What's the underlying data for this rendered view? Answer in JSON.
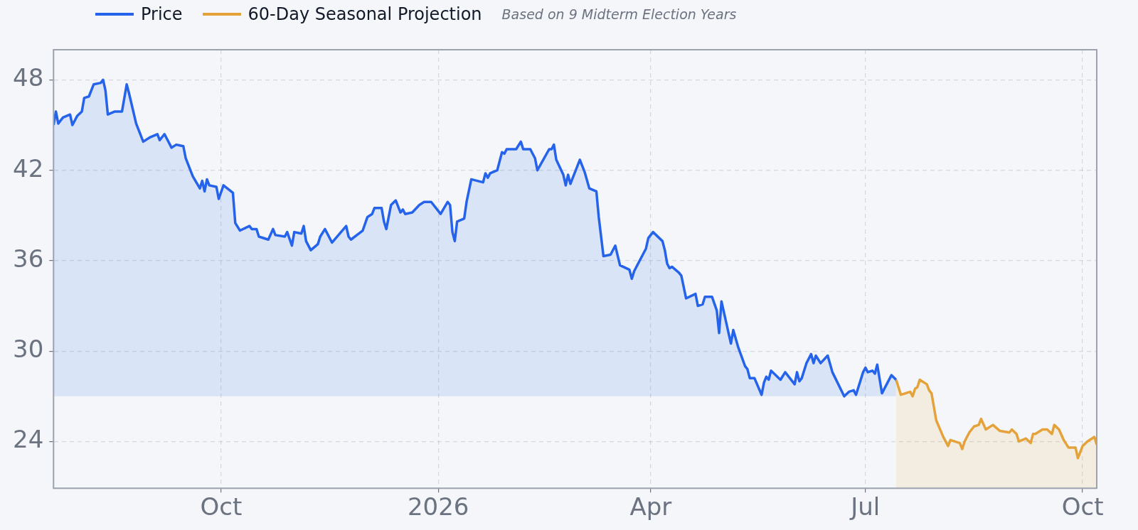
{
  "chart_data": {
    "type": "area",
    "legend": "top left",
    "grid": true,
    "marker": "none",
    "line_style": "solid",
    "annotations": [
      "Based on 9 Midterm Election Years"
    ],
    "xlim": [
      "2025-07-22",
      "2026-10-07"
    ],
    "xticks": [
      {
        "value": "2025-10-01",
        "label": "Oct"
      },
      {
        "value": "2026-01-01",
        "label": "2026"
      },
      {
        "value": "2026-04-01",
        "label": "Apr"
      },
      {
        "value": "2026-07-01",
        "label": "Jul"
      },
      {
        "value": "2026-10-01",
        "label": "Oct"
      }
    ],
    "ylim": [
      20.9,
      50
    ],
    "yticks": [
      24,
      30,
      36,
      42,
      48
    ],
    "series": [
      {
        "name": "Price",
        "color": "#2563eb",
        "x": [
          "2025-07-22",
          "2025-07-23",
          "2025-07-24",
          "2025-07-26",
          "2025-07-29",
          "2025-07-30",
          "2025-08-01",
          "2025-08-03",
          "2025-08-04",
          "2025-08-06",
          "2025-08-08",
          "2025-08-11",
          "2025-08-12",
          "2025-08-13",
          "2025-08-14",
          "2025-08-17",
          "2025-08-20",
          "2025-08-22",
          "2025-08-23",
          "2025-08-26",
          "2025-08-29",
          "2025-09-01",
          "2025-09-04",
          "2025-09-05",
          "2025-09-07",
          "2025-09-10",
          "2025-09-12",
          "2025-09-15",
          "2025-09-16",
          "2025-09-19",
          "2025-09-22",
          "2025-09-23",
          "2025-09-24",
          "2025-09-25",
          "2025-09-26",
          "2025-09-29",
          "2025-09-30",
          "2025-10-02",
          "2025-10-06",
          "2025-10-07",
          "2025-10-09",
          "2025-10-13",
          "2025-10-14",
          "2025-10-16",
          "2025-10-17",
          "2025-10-21",
          "2025-10-23",
          "2025-10-24",
          "2025-10-28",
          "2025-10-29",
          "2025-10-31",
          "2025-11-01",
          "2025-11-04",
          "2025-11-05",
          "2025-11-06",
          "2025-11-08",
          "2025-11-11",
          "2025-11-12",
          "2025-11-14",
          "2025-11-17",
          "2025-11-23",
          "2025-11-24",
          "2025-11-25",
          "2025-11-30",
          "2025-12-02",
          "2025-12-04",
          "2025-12-05",
          "2025-12-08",
          "2025-12-09",
          "2025-12-10",
          "2025-12-12",
          "2025-12-14",
          "2025-12-16",
          "2025-12-17",
          "2025-12-18",
          "2025-12-21",
          "2025-12-24",
          "2025-12-26",
          "2025-12-29",
          "2025-12-31",
          "2026-01-02",
          "2026-01-05",
          "2026-01-06",
          "2026-01-07",
          "2026-01-08",
          "2026-01-09",
          "2026-01-12",
          "2026-01-13",
          "2026-01-15",
          "2026-01-20",
          "2026-01-21",
          "2026-01-22",
          "2026-01-23",
          "2026-01-26",
          "2026-01-28",
          "2026-01-29",
          "2026-01-30",
          "2026-02-03",
          "2026-02-05",
          "2026-02-06",
          "2026-02-09",
          "2026-02-11",
          "2026-02-12",
          "2026-02-17",
          "2026-02-18",
          "2026-02-19",
          "2026-02-20",
          "2026-02-23",
          "2026-02-24",
          "2026-02-25",
          "2026-02-26",
          "2026-03-02",
          "2026-03-04",
          "2026-03-06",
          "2026-03-09",
          "2026-03-10",
          "2026-03-12",
          "2026-03-15",
          "2026-03-17",
          "2026-03-19",
          "2026-03-23",
          "2026-03-24",
          "2026-03-25",
          "2026-03-27",
          "2026-03-30",
          "2026-03-31",
          "2026-04-02",
          "2026-04-06",
          "2026-04-07",
          "2026-04-08",
          "2026-04-09",
          "2026-04-10",
          "2026-04-13",
          "2026-04-14",
          "2026-04-16",
          "2026-04-20",
          "2026-04-21",
          "2026-04-23",
          "2026-04-24",
          "2026-04-27",
          "2026-04-29",
          "2026-04-30",
          "2026-05-01",
          "2026-05-05",
          "2026-05-06",
          "2026-05-08",
          "2026-05-11",
          "2026-05-12",
          "2026-05-13",
          "2026-05-15",
          "2026-05-18",
          "2026-05-19",
          "2026-05-20",
          "2026-05-21",
          "2026-05-22",
          "2026-05-26",
          "2026-05-28",
          "2026-05-30",
          "2026-06-01",
          "2026-06-02",
          "2026-06-03",
          "2026-06-04",
          "2026-06-06",
          "2026-06-08",
          "2026-06-09",
          "2026-06-10",
          "2026-06-12",
          "2026-06-15",
          "2026-06-17",
          "2026-06-22",
          "2026-06-24",
          "2026-06-26",
          "2026-06-27",
          "2026-06-30",
          "2026-07-01",
          "2026-07-02",
          "2026-07-04",
          "2026-07-05",
          "2026-07-06",
          "2026-07-08",
          "2026-07-12",
          "2026-07-14"
        ],
        "values": [
          45.0,
          45.9,
          45.1,
          45.5,
          45.7,
          45.0,
          45.6,
          45.9,
          46.8,
          46.9,
          47.7,
          47.8,
          48.0,
          47.3,
          45.7,
          45.9,
          45.9,
          47.7,
          47.1,
          45.1,
          43.9,
          44.2,
          44.4,
          44.0,
          44.4,
          43.5,
          43.7,
          43.6,
          42.8,
          41.6,
          40.8,
          41.3,
          40.6,
          41.4,
          41.0,
          40.9,
          40.1,
          41.0,
          40.5,
          38.5,
          38.0,
          38.3,
          38.1,
          38.1,
          37.6,
          37.4,
          38.1,
          37.7,
          37.6,
          37.9,
          37.0,
          37.9,
          37.8,
          38.3,
          37.3,
          36.7,
          37.1,
          37.6,
          38.1,
          37.2,
          38.3,
          37.6,
          37.4,
          38.0,
          38.9,
          39.1,
          39.5,
          39.5,
          38.6,
          38.1,
          39.7,
          40.0,
          39.2,
          39.4,
          39.1,
          39.2,
          39.7,
          39.9,
          39.9,
          39.5,
          39.1,
          39.9,
          39.7,
          37.9,
          37.3,
          38.6,
          38.8,
          39.9,
          41.4,
          41.2,
          41.8,
          41.5,
          41.8,
          42.0,
          43.2,
          43.1,
          43.4,
          43.4,
          43.9,
          43.4,
          43.4,
          42.8,
          42.0,
          43.4,
          43.4,
          43.7,
          42.7,
          41.7,
          41.0,
          41.7,
          41.1,
          42.7,
          41.9,
          40.8,
          40.6,
          38.9,
          36.3,
          36.4,
          37.0,
          35.7,
          35.4,
          34.8,
          35.3,
          35.9,
          36.8,
          37.5,
          37.9,
          37.3,
          36.7,
          35.8,
          35.5,
          35.6,
          35.2,
          35.0,
          33.5,
          33.8,
          33.0,
          33.1,
          33.6,
          33.6,
          32.7,
          31.2,
          33.3,
          30.5,
          31.4,
          30.3,
          29.0,
          28.8,
          28.2,
          28.2,
          27.1,
          27.9,
          28.3,
          28.1,
          28.7,
          28.1,
          28.6,
          28.2,
          27.8,
          28.6,
          28.0,
          28.2,
          29.2,
          29.8,
          29.2,
          29.7,
          29.2,
          29.7,
          28.6,
          27.0,
          27.3,
          27.4,
          27.1,
          28.6,
          28.9,
          28.6,
          28.7,
          28.5,
          29.1,
          27.2,
          28.4,
          28.1
        ]
      },
      {
        "name": "60-Day Seasonal Projection",
        "color": "#e5a23a",
        "x": [
          "2026-07-14",
          "2026-07-16",
          "2026-07-20",
          "2026-07-21",
          "2026-07-22",
          "2026-07-23",
          "2026-07-24",
          "2026-07-27",
          "2026-07-28",
          "2026-07-29",
          "2026-07-31",
          "2026-08-03",
          "2026-08-05",
          "2026-08-06",
          "2026-08-10",
          "2026-08-11",
          "2026-08-12",
          "2026-08-14",
          "2026-08-16",
          "2026-08-18",
          "2026-08-19",
          "2026-08-21",
          "2026-08-24",
          "2026-08-27",
          "2026-08-31",
          "2026-09-01",
          "2026-09-03",
          "2026-09-04",
          "2026-09-07",
          "2026-09-09",
          "2026-09-10",
          "2026-09-11",
          "2026-09-14",
          "2026-09-16",
          "2026-09-18",
          "2026-09-19",
          "2026-09-21",
          "2026-09-23",
          "2026-09-25",
          "2026-09-28",
          "2026-09-29",
          "2026-10-01",
          "2026-10-03",
          "2026-10-06",
          "2026-10-07"
        ],
        "values": [
          28.1,
          27.1,
          27.3,
          27.0,
          27.5,
          27.6,
          28.1,
          27.8,
          27.4,
          27.2,
          25.4,
          24.3,
          23.7,
          24.1,
          23.9,
          23.5,
          24.0,
          24.6,
          25.0,
          25.1,
          25.5,
          24.8,
          25.1,
          24.7,
          24.6,
          24.8,
          24.5,
          24.0,
          24.2,
          23.9,
          24.5,
          24.5,
          24.8,
          24.8,
          24.5,
          25.1,
          24.8,
          24.1,
          23.6,
          23.6,
          22.9,
          23.7,
          24.0,
          24.3,
          23.8
        ]
      }
    ]
  }
}
